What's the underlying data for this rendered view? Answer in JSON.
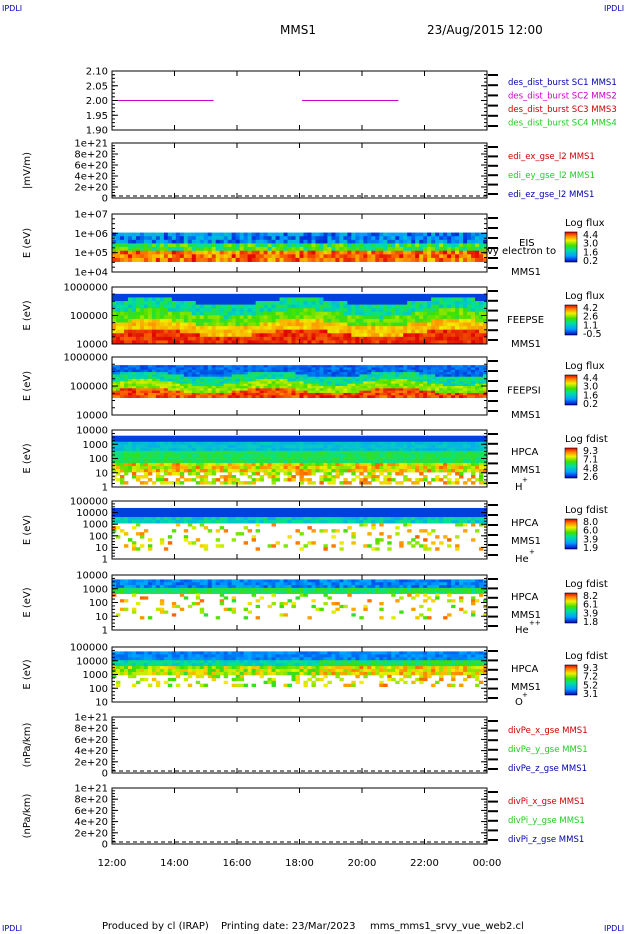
{
  "header": {
    "corner_label": "IPDLI",
    "mission": "MMS1",
    "date": "23/Aug/2015 12:00"
  },
  "footer": {
    "producer": "Produced by cl (IRAP)",
    "print_date": "Printing date: 23/Mar/2023",
    "script_name": "mms_mms1_srvy_vue_web2.cl"
  },
  "colors": {
    "line_black": "#000000",
    "sc2_magenta": "#cc00cc",
    "blue": "#0000aa",
    "red": "#cc0000",
    "green": "#22cc22"
  },
  "time_axis": {
    "start": "12:00",
    "end": "00:00",
    "tick_labels": [
      "12:00",
      "14:00",
      "16:00",
      "18:00",
      "20:00",
      "22:00",
      "00:00"
    ]
  },
  "chart_data": [
    {
      "type": "line",
      "ylabel": "",
      "yticks": [
        "2.10",
        "2.05",
        "2.00",
        "1.95",
        "1.90"
      ],
      "ylim": [
        1.9,
        2.1
      ],
      "legend": [
        "des_dist_burst SC1 MMS1",
        "des_dist_burst SC2 MMS2",
        "des_dist_burst SC3 MMS3",
        "des_dist_burst SC4 MMS4"
      ],
      "legend_colors": [
        "#0000aa",
        "#cc00cc",
        "#cc0000",
        "#22cc22"
      ],
      "series": [
        {
          "name": "des_dist_burst SC2 MMS2",
          "segments": [
            {
              "x": [
                "12:00",
                "15:15"
              ],
              "y": 2.0
            },
            {
              "x": [
                "18:05",
                "21:10"
              ],
              "y": 2.0
            }
          ]
        }
      ]
    },
    {
      "type": "line",
      "ylabel": "|mV/m)",
      "yticks": [
        "1e+21",
        "8e+20",
        "6e+20",
        "4e+20",
        "2e+20",
        "0"
      ],
      "ylim": [
        0,
        1e+21
      ],
      "legend": [
        "edi_ex_gse_l2 MMS1",
        "edi_ey_gse_l2 MMS1",
        "edi_ez_gse_l2 MMS1"
      ],
      "legend_colors": [
        "#cc0000",
        "#22cc22",
        "#0000aa"
      ],
      "series": []
    },
    {
      "type": "heatmap",
      "ylabel": "E (eV)",
      "yticks": [
        "1e+07",
        "1e+06",
        "1e+05",
        "1e+04"
      ],
      "labels": [
        "EIS",
        "vy electron to",
        "MMS1"
      ],
      "colorbar": {
        "title": "Log flux",
        "ticks": [
          "4.4",
          "3.0",
          "1.6",
          "0.2"
        ]
      }
    },
    {
      "type": "heatmap",
      "ylabel": "E (eV)",
      "yticks": [
        "1000000",
        "100000",
        "10000"
      ],
      "labels": [
        "FEEPSE",
        "MMS1"
      ],
      "colorbar": {
        "title": "Log flux",
        "ticks": [
          "4.2",
          "2.6",
          "1.1",
          "-0.5"
        ]
      }
    },
    {
      "type": "heatmap",
      "ylabel": "E (eV)",
      "yticks": [
        "1000000",
        "100000",
        "10000"
      ],
      "labels": [
        "FEEPSI",
        "MMS1"
      ],
      "colorbar": {
        "title": "Log flux",
        "ticks": [
          "4.4",
          "3.0",
          "1.6",
          "0.2"
        ]
      }
    },
    {
      "type": "heatmap",
      "ylabel": "E (eV)",
      "yticks": [
        "10000",
        "1000",
        "100",
        "10",
        "1"
      ],
      "labels": [
        "HPCA",
        "MMS1",
        "H",
        "+"
      ],
      "colorbar": {
        "title": "Log fdist",
        "ticks": [
          "9.3",
          "7.1",
          "4.8",
          "2.6"
        ]
      }
    },
    {
      "type": "heatmap",
      "ylabel": "E (eV)",
      "yticks": [
        "100000",
        "10000",
        "1000",
        "100",
        "10",
        "1"
      ],
      "labels": [
        "HPCA",
        "MMS1",
        "He",
        "+"
      ],
      "colorbar": {
        "title": "Log fdist",
        "ticks": [
          "8.0",
          "6.0",
          "3.9",
          "1.9"
        ]
      }
    },
    {
      "type": "heatmap",
      "ylabel": "E (eV)",
      "yticks": [
        "10000",
        "1000",
        "100",
        "10",
        "1"
      ],
      "labels": [
        "HPCA",
        "MMS1",
        "He",
        "++"
      ],
      "colorbar": {
        "title": "Log fdist",
        "ticks": [
          "8.2",
          "6.1",
          "3.9",
          "1.8"
        ]
      }
    },
    {
      "type": "heatmap",
      "ylabel": "E (eV)",
      "yticks": [
        "100000",
        "10000",
        "1000",
        "100",
        "10"
      ],
      "labels": [
        "HPCA",
        "MMS1",
        "O",
        "+"
      ],
      "colorbar": {
        "title": "Log fdist",
        "ticks": [
          "9.3",
          "7.2",
          "5.2",
          "3.1"
        ]
      }
    },
    {
      "type": "line",
      "ylabel": "(nPa/km)",
      "yticks": [
        "1e+21",
        "8e+20",
        "6e+20",
        "4e+20",
        "2e+20",
        "0"
      ],
      "ylim": [
        0,
        1e+21
      ],
      "legend": [
        "divPe_x_gse MMS1",
        "divPe_y_gse MMS1",
        "divPe_z_gse MMS1"
      ],
      "legend_colors": [
        "#cc0000",
        "#22cc22",
        "#0000aa"
      ],
      "series": []
    },
    {
      "type": "line",
      "ylabel": "(nPa/km)",
      "yticks": [
        "1e+21",
        "8e+20",
        "6e+20",
        "4e+20",
        "2e+20",
        "0"
      ],
      "ylim": [
        0,
        1e+21
      ],
      "legend": [
        "divPi_x_gse MMS1",
        "divPi_y_gse MMS1",
        "divPi_z_gse MMS1"
      ],
      "legend_colors": [
        "#cc0000",
        "#22cc22",
        "#0000aa"
      ],
      "series": []
    }
  ]
}
